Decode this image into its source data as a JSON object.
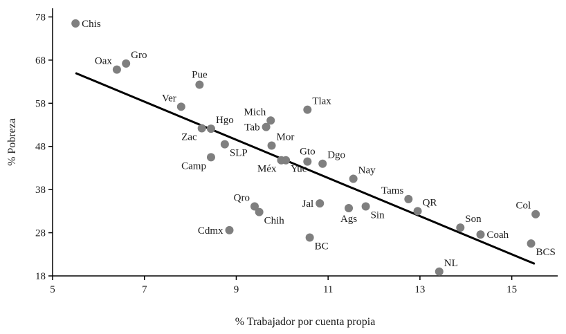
{
  "chart_data": {
    "type": "scatter",
    "xlabel": "% Trabajador por cuenta propia",
    "ylabel": "% Pobreza",
    "xlim": [
      5,
      16
    ],
    "ylim": [
      18,
      80
    ],
    "x_ticks": [
      "5",
      "7",
      "9",
      "11",
      "13",
      "15"
    ],
    "y_ticks": [
      "18",
      "28",
      "38",
      "48",
      "58",
      "68",
      "78"
    ],
    "grid": false,
    "trendline": {
      "x": [
        5.5,
        15.5
      ],
      "y": [
        65.0,
        20.8
      ]
    },
    "colors": {
      "points": "#7f7f7f",
      "trendline": "#000000",
      "axis": "#000000"
    },
    "points": [
      {
        "label": "Chis",
        "x": 5.5,
        "y": 76.5,
        "pos": "right"
      },
      {
        "label": "Oax",
        "x": 6.4,
        "y": 65.8,
        "pos": "upper-left"
      },
      {
        "label": "Gro",
        "x": 6.6,
        "y": 67.2,
        "pos": "upper-right"
      },
      {
        "label": "Pue",
        "x": 8.2,
        "y": 62.3,
        "pos": "upper"
      },
      {
        "label": "Ver",
        "x": 7.8,
        "y": 57.2,
        "pos": "upper-left"
      },
      {
        "label": "Hgo",
        "x": 8.45,
        "y": 52.1,
        "pos": "upper-right"
      },
      {
        "label": "Zac",
        "x": 8.25,
        "y": 52.2,
        "pos": "lower-left"
      },
      {
        "label": "SLP",
        "x": 8.75,
        "y": 48.5,
        "pos": "lower-right"
      },
      {
        "label": "Camp",
        "x": 8.45,
        "y": 45.5,
        "pos": "lower-left"
      },
      {
        "label": "Mich",
        "x": 9.75,
        "y": 54.0,
        "pos": "upper-left"
      },
      {
        "label": "Tab",
        "x": 9.65,
        "y": 52.5,
        "pos": "left"
      },
      {
        "label": "Mor",
        "x": 9.77,
        "y": 48.2,
        "pos": "upper-right"
      },
      {
        "label": "Méx",
        "x": 9.98,
        "y": 44.8,
        "pos": "lower-left"
      },
      {
        "label": "Yuc",
        "x": 10.08,
        "y": 44.8,
        "pos": "lower-right"
      },
      {
        "label": "Tlax",
        "x": 10.55,
        "y": 56.5,
        "pos": "upper-right"
      },
      {
        "label": "Gto",
        "x": 10.55,
        "y": 44.5,
        "pos": "upper"
      },
      {
        "label": "Dgo",
        "x": 10.88,
        "y": 44.0,
        "pos": "upper-right"
      },
      {
        "label": "Nay",
        "x": 11.55,
        "y": 40.5,
        "pos": "upper-right"
      },
      {
        "label": "Jal",
        "x": 10.82,
        "y": 34.8,
        "pos": "left"
      },
      {
        "label": "Qro",
        "x": 9.4,
        "y": 34.1,
        "pos": "upper-left"
      },
      {
        "label": "Chih",
        "x": 9.5,
        "y": 32.8,
        "pos": "lower-right"
      },
      {
        "label": "Cdmx",
        "x": 8.85,
        "y": 28.6,
        "pos": "left"
      },
      {
        "label": "Ags",
        "x": 11.45,
        "y": 33.7,
        "pos": "lower"
      },
      {
        "label": "Sin",
        "x": 11.82,
        "y": 34.1,
        "pos": "lower-right"
      },
      {
        "label": "BC",
        "x": 10.6,
        "y": 26.9,
        "pos": "lower-right"
      },
      {
        "label": "Tams",
        "x": 12.75,
        "y": 35.8,
        "pos": "upper-left"
      },
      {
        "label": "QR",
        "x": 12.95,
        "y": 33.0,
        "pos": "upper-right"
      },
      {
        "label": "Son",
        "x": 13.88,
        "y": 29.2,
        "pos": "upper-right"
      },
      {
        "label": "Coah",
        "x": 14.32,
        "y": 27.6,
        "pos": "right"
      },
      {
        "label": "Col",
        "x": 15.52,
        "y": 32.3,
        "pos": "upper-left"
      },
      {
        "label": "BCS",
        "x": 15.42,
        "y": 25.5,
        "pos": "lower-right"
      },
      {
        "label": "NL",
        "x": 13.42,
        "y": 19.0,
        "pos": "upper-right"
      }
    ]
  }
}
